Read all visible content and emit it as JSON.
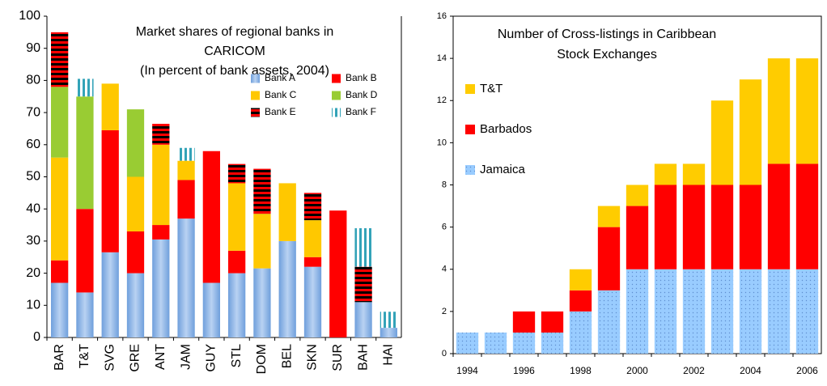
{
  "chart_data": [
    {
      "type": "stacked-bar",
      "title": [
        "Market shares of regional banks in",
        "CARICOM",
        "(In percent of bank assets, 2004)"
      ],
      "categories": [
        "BAR",
        "T&T",
        "SVG",
        "GRE",
        "ANT",
        "JAM",
        "GUY",
        "STL",
        "DOM",
        "BEL",
        "SKN",
        "SUR",
        "BAH",
        "HAI"
      ],
      "series": [
        {
          "name": "Bank A",
          "color": "#8fb4e3",
          "values": [
            17,
            14,
            26.5,
            20,
            30.5,
            37,
            17,
            20,
            21.5,
            30,
            22,
            null,
            11,
            3
          ]
        },
        {
          "name": "Bank B",
          "color": "#ff0000",
          "values": [
            7,
            26,
            38,
            13,
            4.5,
            12,
            41,
            7,
            null,
            null,
            3,
            39.5,
            null,
            null
          ]
        },
        {
          "name": "Bank C",
          "color": "#ffc800",
          "values": [
            32,
            null,
            14.5,
            17,
            25,
            6,
            null,
            21,
            17,
            18,
            11.5,
            null,
            null,
            null
          ]
        },
        {
          "name": "Bank D",
          "color": "#99cc33",
          "values": [
            22,
            35,
            null,
            21,
            null,
            null,
            null,
            null,
            null,
            null,
            null,
            null,
            null,
            null
          ]
        },
        {
          "name": "Bank E",
          "color": "#ff0000",
          "values": [
            17,
            null,
            null,
            null,
            6.5,
            null,
            null,
            6,
            14,
            null,
            8.5,
            null,
            11,
            null
          ]
        },
        {
          "name": "Bank F",
          "color": "#33a3b8",
          "values": [
            null,
            5.5,
            null,
            null,
            null,
            4,
            null,
            null,
            null,
            null,
            null,
            null,
            12,
            5
          ]
        }
      ],
      "ylim": [
        0,
        100
      ],
      "yticks": [
        0,
        10,
        20,
        30,
        40,
        50,
        60,
        70,
        80,
        90,
        100
      ]
    },
    {
      "type": "stacked-bar",
      "title": [
        "Number of Cross-listings in Caribbean",
        "Stock Exchanges"
      ],
      "categories": [
        "1994",
        null,
        "1996",
        null,
        "1998",
        null,
        "2000",
        null,
        "2002",
        null,
        "2004",
        null,
        "2006"
      ],
      "series": [
        {
          "name": "Jamaica",
          "color": "#99ccff",
          "values": [
            1,
            1,
            1,
            1,
            2,
            3,
            4,
            4,
            4,
            4,
            4,
            4,
            4
          ]
        },
        {
          "name": "Barbados",
          "color": "#ff0000",
          "values": [
            0,
            0,
            1,
            1,
            1,
            3,
            3,
            4,
            4,
            4,
            4,
            5,
            5
          ]
        },
        {
          "name": "T&T",
          "color": "#ffcc00",
          "values": [
            0,
            0,
            0,
            0,
            1,
            1,
            1,
            1,
            1,
            4,
            5,
            5,
            5
          ]
        }
      ],
      "ylim": [
        0,
        16
      ],
      "yticks": [
        0,
        2,
        4,
        6,
        8,
        10,
        12,
        14,
        16
      ]
    }
  ]
}
